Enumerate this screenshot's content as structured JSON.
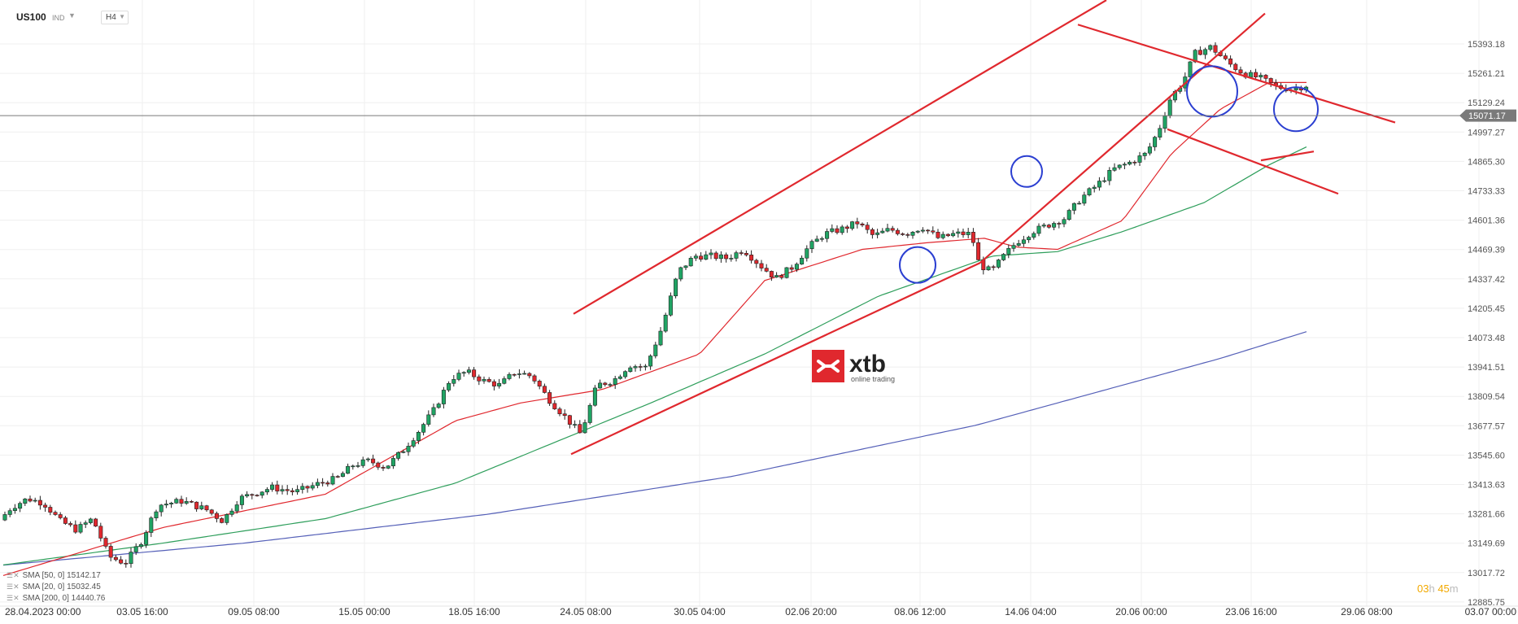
{
  "header": {
    "symbol": "US100",
    "symbol_type": "IND",
    "timeframe": "H4"
  },
  "chart_data": {
    "type": "candlestick",
    "y_ticks": [
      "15393.18",
      "15261.21",
      "15129.24",
      "14997.27",
      "14865.30",
      "14733.33",
      "14601.36",
      "14469.39",
      "14337.42",
      "14205.45",
      "14073.48",
      "13941.51",
      "13809.54",
      "13677.57",
      "13545.60",
      "13413.63",
      "13281.66",
      "13149.69",
      "13017.72",
      "12885.75"
    ],
    "x_ticks": [
      "28.04.2023  00:00",
      "03.05  16:00",
      "09.05  08:00",
      "15.05  00:00",
      "18.05  16:00",
      "24.05  08:00",
      "30.05  04:00",
      "02.06  20:00",
      "08.06  12:00",
      "14.06  04:00",
      "20.06  00:00",
      "23.06  16:00",
      "29.06  08:00",
      "03.07  00:00"
    ],
    "current_price": "15071.17",
    "price_range": [
      12880,
      15460
    ],
    "indicators": [
      {
        "label": "SMA  [50, 0]  15142.17",
        "color": "#2e9e5b"
      },
      {
        "label": "SMA  [20, 0]  15032.45",
        "color": "#e0282e"
      },
      {
        "label": "SMA  [200, 0]  14440.76",
        "color": "#5560b8"
      }
    ],
    "candle_path": [
      [
        0,
        13230
      ],
      [
        20,
        13310
      ],
      [
        40,
        13350
      ],
      [
        60,
        13330
      ],
      [
        80,
        13250
      ],
      [
        100,
        13210
      ],
      [
        120,
        13260
      ],
      [
        140,
        13090
      ],
      [
        160,
        13060
      ],
      [
        180,
        13160
      ],
      [
        200,
        13320
      ],
      [
        230,
        13340
      ],
      [
        260,
        13300
      ],
      [
        280,
        13250
      ],
      [
        300,
        13350
      ],
      [
        340,
        13400
      ],
      [
        370,
        13380
      ],
      [
        400,
        13420
      ],
      [
        420,
        13440
      ],
      [
        440,
        13500
      ],
      [
        460,
        13520
      ],
      [
        480,
        13490
      ],
      [
        500,
        13560
      ],
      [
        520,
        13650
      ],
      [
        540,
        13750
      ],
      [
        560,
        13890
      ],
      [
        580,
        13920
      ],
      [
        600,
        13880
      ],
      [
        620,
        13860
      ],
      [
        640,
        13920
      ],
      [
        660,
        13900
      ],
      [
        680,
        13800
      ],
      [
        700,
        13720
      ],
      [
        720,
        13640
      ],
      [
        740,
        13860
      ],
      [
        760,
        13880
      ],
      [
        780,
        13950
      ],
      [
        800,
        13940
      ],
      [
        820,
        14120
      ],
      [
        840,
        14370
      ],
      [
        860,
        14440
      ],
      [
        880,
        14440
      ],
      [
        900,
        14430
      ],
      [
        920,
        14470
      ],
      [
        940,
        14400
      ],
      [
        960,
        14340
      ],
      [
        980,
        14390
      ],
      [
        1000,
        14480
      ],
      [
        1020,
        14540
      ],
      [
        1040,
        14560
      ],
      [
        1060,
        14590
      ],
      [
        1080,
        14530
      ],
      [
        1100,
        14560
      ],
      [
        1120,
        14540
      ],
      [
        1140,
        14570
      ],
      [
        1160,
        14520
      ],
      [
        1180,
        14540
      ],
      [
        1200,
        14540
      ],
      [
        1210,
        14400
      ],
      [
        1225,
        14370
      ],
      [
        1240,
        14440
      ],
      [
        1255,
        14500
      ],
      [
        1275,
        14550
      ],
      [
        1295,
        14580
      ],
      [
        1315,
        14610
      ],
      [
        1335,
        14700
      ],
      [
        1355,
        14760
      ],
      [
        1375,
        14830
      ],
      [
        1395,
        14860
      ],
      [
        1415,
        14900
      ],
      [
        1430,
        15000
      ],
      [
        1445,
        15150
      ],
      [
        1460,
        15220
      ],
      [
        1475,
        15350
      ],
      [
        1495,
        15380
      ],
      [
        1515,
        15310
      ],
      [
        1535,
        15260
      ],
      [
        1555,
        15240
      ],
      [
        1575,
        15200
      ],
      [
        1595,
        15190
      ],
      [
        1615,
        15210
      ],
      [
        1635,
        15130
      ],
      [
        1655,
        15030
      ],
      [
        1675,
        15000
      ],
      [
        1690,
        15120
      ],
      [
        1705,
        15180
      ],
      [
        1720,
        15110
      ],
      [
        1735,
        15090
      ],
      [
        1750,
        15040
      ],
      [
        1765,
        15030
      ],
      [
        1780,
        14950
      ],
      [
        1795,
        14910
      ],
      [
        1810,
        14900
      ],
      [
        1825,
        14960
      ],
      [
        1840,
        15090
      ],
      [
        1855,
        15080
      ],
      [
        1870,
        15070
      ]
    ],
    "sma20_path": [
      [
        0,
        13000
      ],
      [
        200,
        13220
      ],
      [
        400,
        13370
      ],
      [
        560,
        13700
      ],
      [
        640,
        13780
      ],
      [
        740,
        13840
      ],
      [
        860,
        14000
      ],
      [
        940,
        14330
      ],
      [
        1060,
        14470
      ],
      [
        1140,
        14500
      ],
      [
        1210,
        14520
      ],
      [
        1250,
        14480
      ],
      [
        1300,
        14470
      ],
      [
        1380,
        14600
      ],
      [
        1440,
        14900
      ],
      [
        1500,
        15100
      ],
      [
        1560,
        15220
      ],
      [
        1620,
        15220
      ],
      [
        1700,
        15150
      ],
      [
        1780,
        15060
      ],
      [
        1840,
        15030
      ],
      [
        1870,
        15030
      ]
    ],
    "sma50_path": [
      [
        0,
        13050
      ],
      [
        200,
        13150
      ],
      [
        400,
        13260
      ],
      [
        560,
        13420
      ],
      [
        680,
        13600
      ],
      [
        800,
        13780
      ],
      [
        940,
        14000
      ],
      [
        1080,
        14260
      ],
      [
        1220,
        14440
      ],
      [
        1300,
        14460
      ],
      [
        1380,
        14550
      ],
      [
        1480,
        14680
      ],
      [
        1560,
        14850
      ],
      [
        1640,
        14990
      ],
      [
        1700,
        15080
      ],
      [
        1780,
        15140
      ],
      [
        1840,
        15140
      ],
      [
        1870,
        15142
      ]
    ],
    "sma200_path": [
      [
        0,
        13050
      ],
      [
        300,
        13150
      ],
      [
        600,
        13280
      ],
      [
        900,
        13450
      ],
      [
        1200,
        13680
      ],
      [
        1500,
        13980
      ],
      [
        1800,
        14320
      ],
      [
        1870,
        14440
      ]
    ],
    "trendlines": [
      [
        [
          702,
          13550
        ],
        [
          1205,
          14410
        ]
      ],
      [
        [
          705,
          14180
        ],
        [
          1360,
          15590
        ]
      ],
      [
        [
          1205,
          14410
        ],
        [
          1555,
          15530
        ]
      ],
      [
        [
          1325,
          15480
        ],
        [
          1715,
          15040
        ]
      ],
      [
        [
          1435,
          15010
        ],
        [
          1645,
          14720
        ]
      ],
      [
        [
          1550,
          14870
        ],
        [
          1615,
          14910
        ]
      ]
    ],
    "circles": [
      [
        1128,
        14400,
        22
      ],
      [
        1262,
        14820,
        19
      ],
      [
        1490,
        15180,
        31
      ],
      [
        1593,
        15100,
        27
      ]
    ]
  },
  "countdown": {
    "h": "03",
    "h_unit": "h",
    "m": "45",
    "m_unit": "m"
  },
  "logo": {
    "brand": "xtb",
    "tagline": "online trading"
  }
}
